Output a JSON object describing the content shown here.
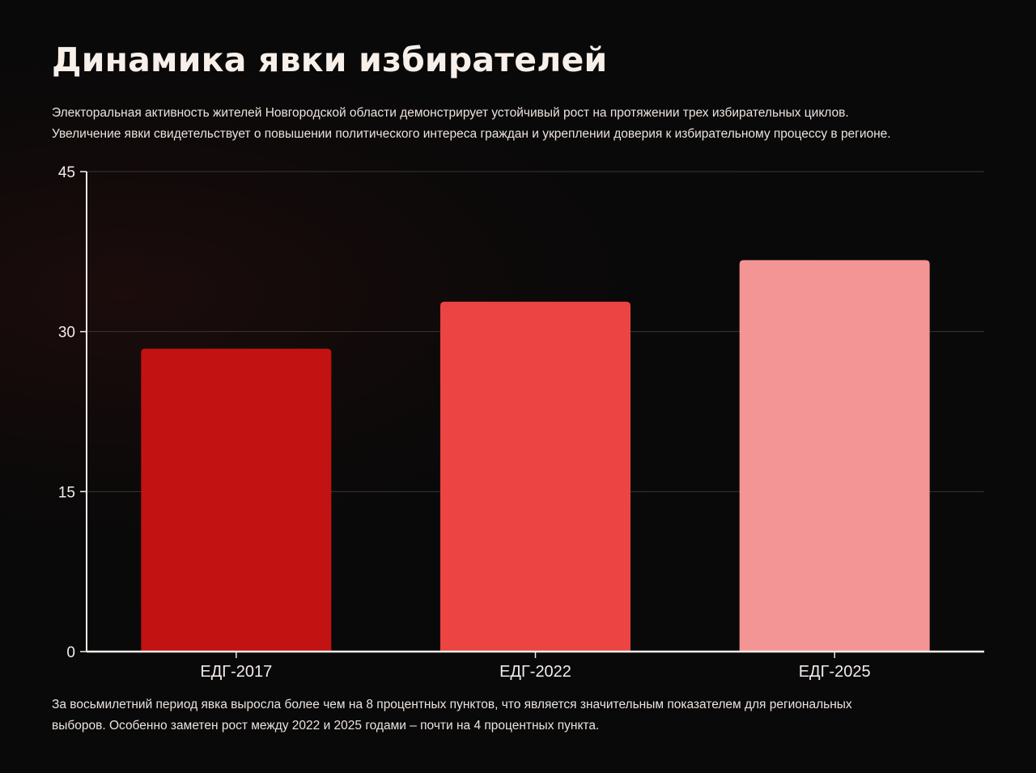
{
  "title": "Динамика явки избирателей",
  "intro": {
    "line1": "Электоральная активность жителей Новгородской области демонстрирует устойчивый рост на протяжении трех избирательных циклов.",
    "line2": "Увеличение явки свидетельствует о повышении политического интереса граждан и укреплении доверия к избирательному процессу в регионе."
  },
  "chart_data": {
    "type": "bar",
    "title": "",
    "xlabel": "",
    "ylabel": "",
    "categories": [
      "ЕДГ-2017",
      "ЕДГ-2022",
      "ЕДГ-2025"
    ],
    "values": [
      28.4,
      32.8,
      36.7
    ],
    "colors": [
      "#c21212",
      "#ec4343",
      "#f39594"
    ],
    "ylim": [
      0,
      45
    ],
    "yticks": [
      0,
      15,
      30,
      45
    ],
    "grid": true,
    "legend": "none"
  },
  "footer": {
    "line1": "За восьмилетний период явка выросла более чем на 8 процентных пунктов, что является значительным показателем для региональных",
    "line2": "выборов. Особенно заметен рост между 2022 и 2025 годами – почти на 4 процентных пункта."
  }
}
